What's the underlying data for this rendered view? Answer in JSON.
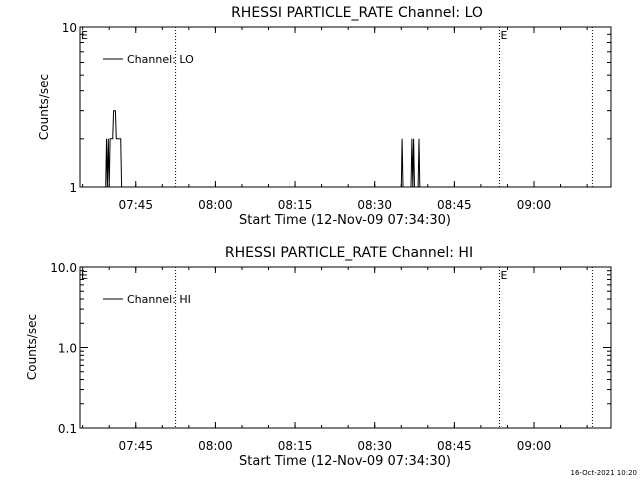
{
  "footer": {
    "timestamp": "16-Oct-2021 10:20"
  },
  "chart_data": [
    {
      "type": "line",
      "title": "RHESSI PARTICLE_RATE Channel: LO",
      "xlabel": "Start Time (12-Nov-09 07:34:30)",
      "ylabel": "Counts/sec",
      "y_scale": "log",
      "ylim": [
        1,
        10
      ],
      "y_ticks": [
        {
          "value": 1,
          "label": "1"
        },
        {
          "value": 10,
          "label": "10"
        }
      ],
      "xlim": [
        "07:34:30",
        "09:14:30"
      ],
      "x_ticks": [
        "07:45",
        "08:00",
        "08:15",
        "08:30",
        "08:45",
        "09:00"
      ],
      "grid": false,
      "legend": {
        "position": "top-left",
        "entries": [
          "Channel: LO"
        ]
      },
      "event_markers": [
        {
          "time": "07:34:30",
          "label": "E"
        },
        {
          "time": "07:52:30",
          "label": ""
        },
        {
          "time": "08:53:30",
          "label": "E"
        },
        {
          "time": "09:11:00",
          "label": ""
        }
      ],
      "series": [
        {
          "name": "Channel: LO",
          "points": [
            [
              "07:39:20",
              1
            ],
            [
              "07:39:30",
              2
            ],
            [
              "07:39:40",
              1
            ],
            [
              "07:39:50",
              2
            ],
            [
              "07:40:00",
              1
            ],
            [
              "07:40:10",
              2
            ],
            [
              "07:40:40",
              2
            ],
            [
              "07:40:50",
              3
            ],
            [
              "07:41:10",
              3
            ],
            [
              "07:41:20",
              2
            ],
            [
              "07:42:10",
              2
            ],
            [
              "07:42:20",
              1
            ],
            [
              "08:35:00",
              1
            ],
            [
              "08:35:10",
              2
            ],
            [
              "08:35:20",
              1
            ],
            [
              "08:36:50",
              1
            ],
            [
              "08:37:00",
              2
            ],
            [
              "08:37:10",
              1
            ],
            [
              "08:37:20",
              2
            ],
            [
              "08:37:30",
              1
            ],
            [
              "08:38:10",
              1
            ],
            [
              "08:38:20",
              2
            ],
            [
              "08:38:30",
              1
            ]
          ]
        }
      ]
    },
    {
      "type": "line",
      "title": "RHESSI PARTICLE_RATE Channel: HI",
      "xlabel": "Start Time (12-Nov-09 07:34:30)",
      "ylabel": "Counts/sec",
      "y_scale": "log",
      "ylim": [
        0.1,
        10
      ],
      "y_ticks": [
        {
          "value": 0.1,
          "label": "0.1"
        },
        {
          "value": 1,
          "label": "1.0"
        },
        {
          "value": 10,
          "label": "10.0"
        }
      ],
      "xlim": [
        "07:34:30",
        "09:14:30"
      ],
      "x_ticks": [
        "07:45",
        "08:00",
        "08:15",
        "08:30",
        "08:45",
        "09:00"
      ],
      "grid": false,
      "legend": {
        "position": "top-left",
        "entries": [
          "Channel: HI"
        ]
      },
      "event_markers": [
        {
          "time": "07:34:30",
          "label": "E"
        },
        {
          "time": "07:52:30",
          "label": ""
        },
        {
          "time": "08:53:30",
          "label": "E"
        },
        {
          "time": "09:11:00",
          "label": ""
        }
      ],
      "series": [
        {
          "name": "Channel: HI",
          "points": []
        }
      ]
    }
  ]
}
